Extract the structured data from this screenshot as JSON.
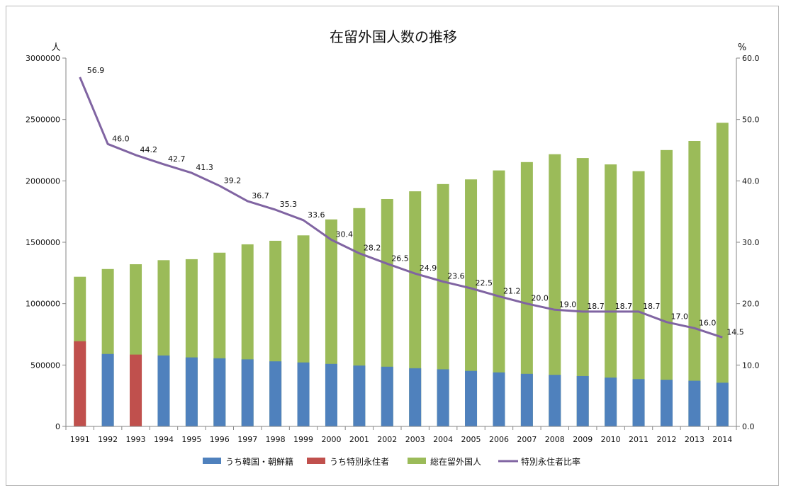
{
  "chart_data": {
    "type": "bar",
    "title": "在留外国人数の推移",
    "y_left_unit": "人",
    "y_right_unit": "%",
    "categories": [
      "1991",
      "1992",
      "1993",
      "1994",
      "1995",
      "1996",
      "1997",
      "1998",
      "1999",
      "2000",
      "2001",
      "2002",
      "2003",
      "2004",
      "2005",
      "2006",
      "2007",
      "2008",
      "2009",
      "2010",
      "2011",
      "2012",
      "2013",
      "2014"
    ],
    "ylim_left": [
      0,
      3000000
    ],
    "ylim_right": [
      0,
      60
    ],
    "y_left_ticks": [
      "0",
      "500000",
      "1000000",
      "1500000",
      "2000000",
      "2500000",
      "3000000"
    ],
    "y_right_ticks": [
      "0.0",
      "10.0",
      "20.0",
      "30.0",
      "40.0",
      "50.0",
      "60.0"
    ],
    "grid": false,
    "legend_position": "bottom",
    "series": [
      {
        "name": "うち韓国・朝鮮籍",
        "type": "bar",
        "axis": "left",
        "color": "#4f81bd",
        "values": [
          null,
          590000,
          null,
          578000,
          562000,
          555000,
          546000,
          530000,
          521000,
          509000,
          496000,
          486000,
          474000,
          465000,
          452000,
          440000,
          428000,
          420000,
          410000,
          398000,
          385000,
          380000,
          372000,
          356000
        ]
      },
      {
        "name": "うち特別永住者",
        "type": "bar",
        "axis": "left",
        "color": "#c0504d",
        "values": [
          694000,
          null,
          585000,
          null,
          null,
          null,
          null,
          null,
          null,
          null,
          null,
          null,
          null,
          null,
          null,
          null,
          null,
          null,
          null,
          null,
          null,
          null,
          null,
          null
        ]
      },
      {
        "name": "総在留外国人",
        "type": "bar",
        "axis": "left",
        "color": "#9bbb59",
        "values": [
          1219000,
          1282000,
          1321000,
          1354000,
          1362000,
          1415000,
          1483000,
          1512000,
          1556000,
          1686000,
          1778000,
          1852000,
          1915000,
          1974000,
          2012000,
          2085000,
          2153000,
          2217000,
          2186000,
          2134000,
          2079000,
          2251000,
          2325000,
          2473000
        ]
      },
      {
        "name": "特別永住者比率",
        "type": "line",
        "axis": "right",
        "color": "#8064a2",
        "values": [
          56.9,
          46.0,
          44.2,
          42.7,
          41.3,
          39.2,
          36.7,
          35.3,
          33.6,
          30.4,
          28.2,
          26.5,
          24.9,
          23.6,
          22.5,
          21.2,
          20.0,
          19.0,
          18.7,
          18.7,
          18.7,
          17.0,
          16.0,
          14.5
        ],
        "labels": [
          "56.9",
          "46.0",
          "44.2",
          "42.7",
          "41.3",
          "39.2",
          "36.7",
          "35.3",
          "33.6",
          "30.4",
          "28.2",
          "26.5",
          "24.9",
          "23.6",
          "22.5",
          "21.2",
          "20.0",
          "19.0",
          "18.7",
          "18.7",
          "18.7",
          "17.0",
          "16.0",
          "14.5"
        ]
      }
    ]
  }
}
